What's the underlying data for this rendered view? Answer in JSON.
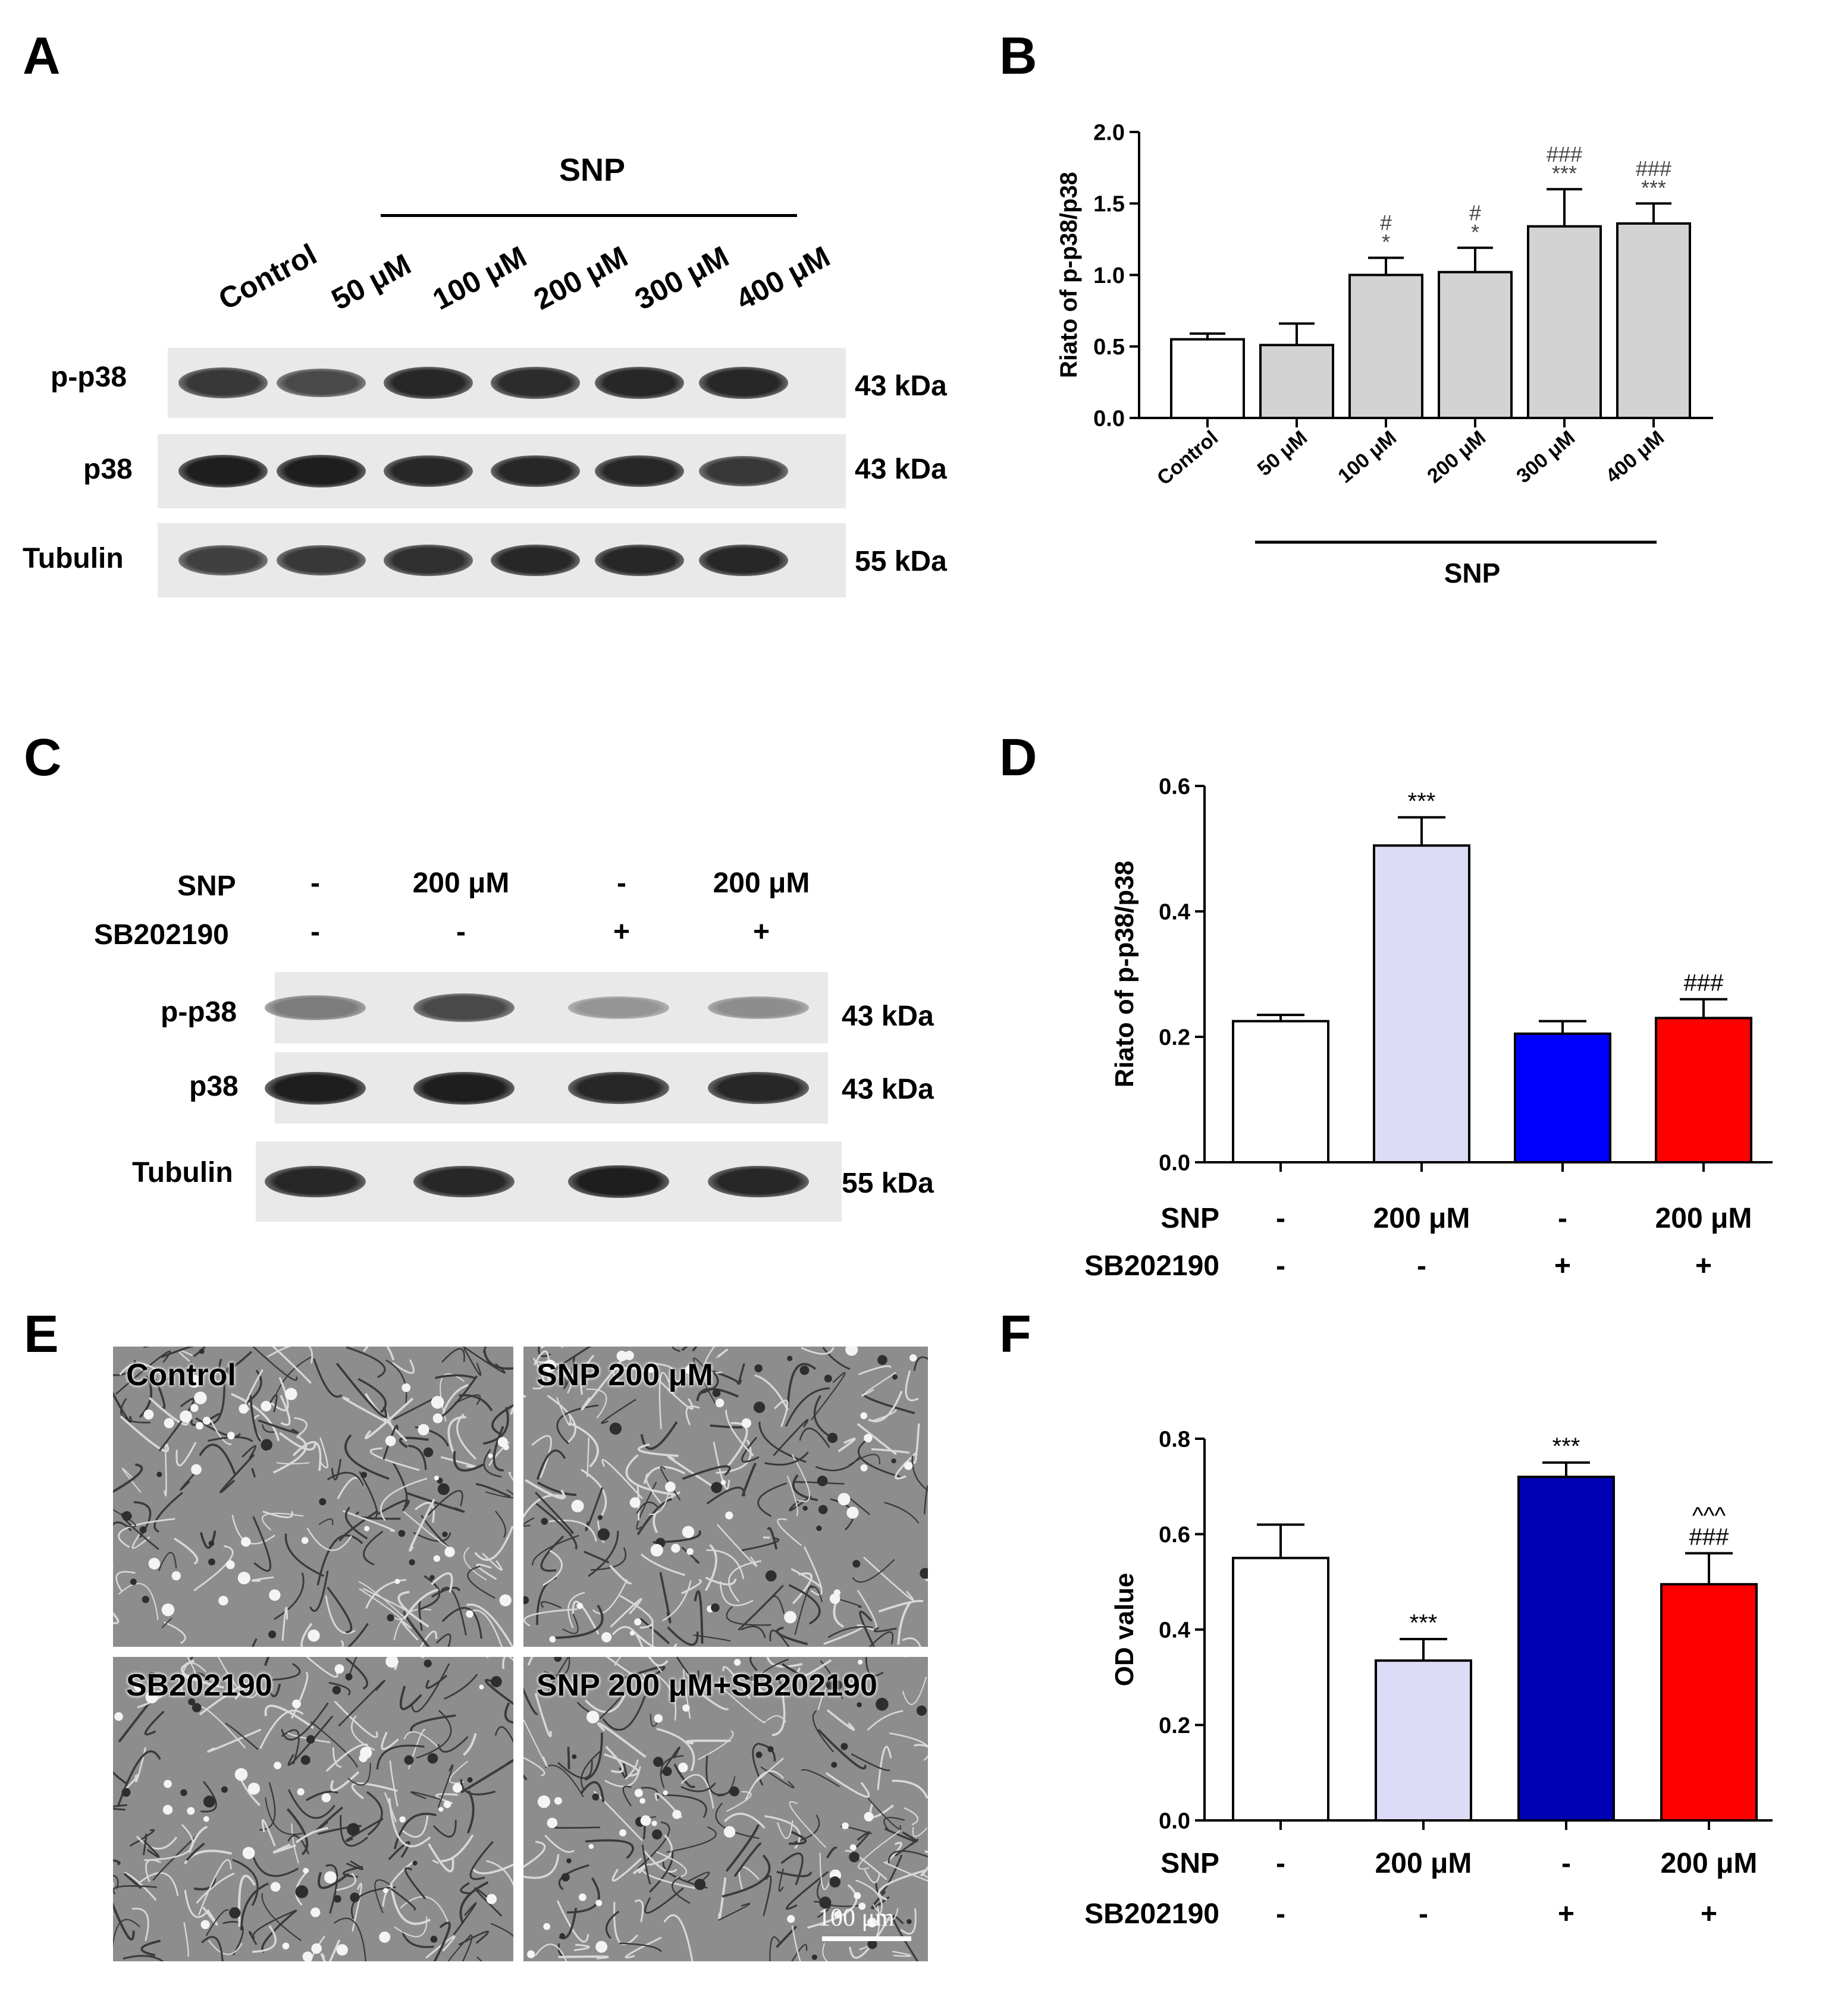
{
  "panels": {
    "A": "A",
    "B": "B",
    "C": "C",
    "D": "D",
    "E": "E",
    "F": "F"
  },
  "blotA": {
    "group_label": "SNP",
    "lanes": [
      "Control",
      "50 μM",
      "100 μM",
      "200 μM",
      "300 μM",
      "400 μM"
    ],
    "rows": [
      {
        "protein": "p-p38",
        "size": "43 kDa",
        "intensity": [
          0.85,
          0.75,
          0.95,
          0.92,
          0.95,
          0.95
        ]
      },
      {
        "protein": "p38",
        "size": "43 kDa",
        "intensity": [
          1.0,
          1.0,
          0.95,
          0.95,
          0.95,
          0.85
        ]
      },
      {
        "protein": "Tubulin",
        "size": "55 kDa",
        "intensity": [
          0.8,
          0.85,
          0.9,
          0.95,
          0.95,
          0.95
        ]
      }
    ]
  },
  "blotC": {
    "conditions": [
      {
        "name": "SNP",
        "values": [
          "-",
          "200 μM",
          "-",
          "200 μM"
        ]
      },
      {
        "name": "SB202190",
        "values": [
          "-",
          "-",
          "+",
          "+"
        ]
      }
    ],
    "rows": [
      {
        "protein": "p-p38",
        "size": "43 kDa",
        "intensity": [
          0.45,
          0.75,
          0.3,
          0.35
        ]
      },
      {
        "protein": "p38",
        "size": "43 kDa",
        "intensity": [
          1.0,
          1.0,
          0.95,
          0.95
        ]
      },
      {
        "protein": "Tubulin",
        "size": "55 kDa",
        "intensity": [
          0.95,
          0.95,
          1.0,
          0.95
        ]
      }
    ]
  },
  "micrographs": {
    "tiles": [
      "Control",
      "SNP 200 μM",
      "SB202190",
      "SNP 200 μM+SB202190"
    ],
    "scale_bar": "100 μm"
  },
  "chart_data": [
    {
      "id": "B",
      "type": "bar",
      "ylabel": "Riato of p-p38/p38",
      "ylim": [
        0,
        2.0
      ],
      "yticks": [
        "0.0",
        "0.5",
        "1.0",
        "1.5",
        "2.0"
      ],
      "categories": [
        "Control",
        "50 μM",
        "100 μM",
        "200 μM",
        "300 μM",
        "400 μM"
      ],
      "values": [
        0.55,
        0.51,
        1.0,
        1.02,
        1.34,
        1.36
      ],
      "errors": [
        0.04,
        0.15,
        0.12,
        0.17,
        0.26,
        0.14
      ],
      "colors": [
        "#ffffff",
        "#d3d3d3",
        "#d3d3d3",
        "#d3d3d3",
        "#d3d3d3",
        "#d3d3d3"
      ],
      "annotations": [
        [
          "",
          ""
        ],
        [
          "",
          ""
        ],
        [
          "#",
          "*"
        ],
        [
          "#",
          "*"
        ],
        [
          "###",
          "***"
        ],
        [
          "###",
          "***"
        ]
      ],
      "group_label": "SNP"
    },
    {
      "id": "D",
      "type": "bar",
      "ylabel": "Riato of p-p38/p38",
      "ylim": [
        0,
        0.6
      ],
      "yticks": [
        "0.0",
        "0.2",
        "0.4",
        "0.6"
      ],
      "values": [
        0.225,
        0.505,
        0.205,
        0.23
      ],
      "errors": [
        0.01,
        0.045,
        0.02,
        0.03
      ],
      "colors": [
        "#ffffff",
        "#dcdcf7",
        "#0000ff",
        "#ff0000"
      ],
      "annotations": [
        [
          ""
        ],
        [
          "***"
        ],
        [
          ""
        ],
        [
          "###"
        ]
      ],
      "conditions": [
        {
          "name": "SNP",
          "values": [
            "-",
            "200 μM",
            "-",
            "200 μM"
          ]
        },
        {
          "name": "SB202190",
          "values": [
            "-",
            "-",
            "+",
            "+"
          ]
        }
      ]
    },
    {
      "id": "F",
      "type": "bar",
      "ylabel": "OD value",
      "ylim": [
        0,
        0.8
      ],
      "yticks": [
        "0.0",
        "0.2",
        "0.4",
        "0.6",
        "0.8"
      ],
      "values": [
        0.55,
        0.335,
        0.72,
        0.495
      ],
      "errors": [
        0.07,
        0.045,
        0.03,
        0.065
      ],
      "colors": [
        "#ffffff",
        "#dcdcf7",
        "#0000b4",
        "#ff0000"
      ],
      "annotations": [
        [
          ""
        ],
        [
          "***"
        ],
        [
          "***"
        ],
        [
          "^^^",
          "###"
        ]
      ],
      "conditions": [
        {
          "name": "SNP",
          "values": [
            "-",
            "200 μM",
            "-",
            "200 μM"
          ]
        },
        {
          "name": "SB202190",
          "values": [
            "-",
            "-",
            "+",
            "+"
          ]
        }
      ]
    }
  ]
}
